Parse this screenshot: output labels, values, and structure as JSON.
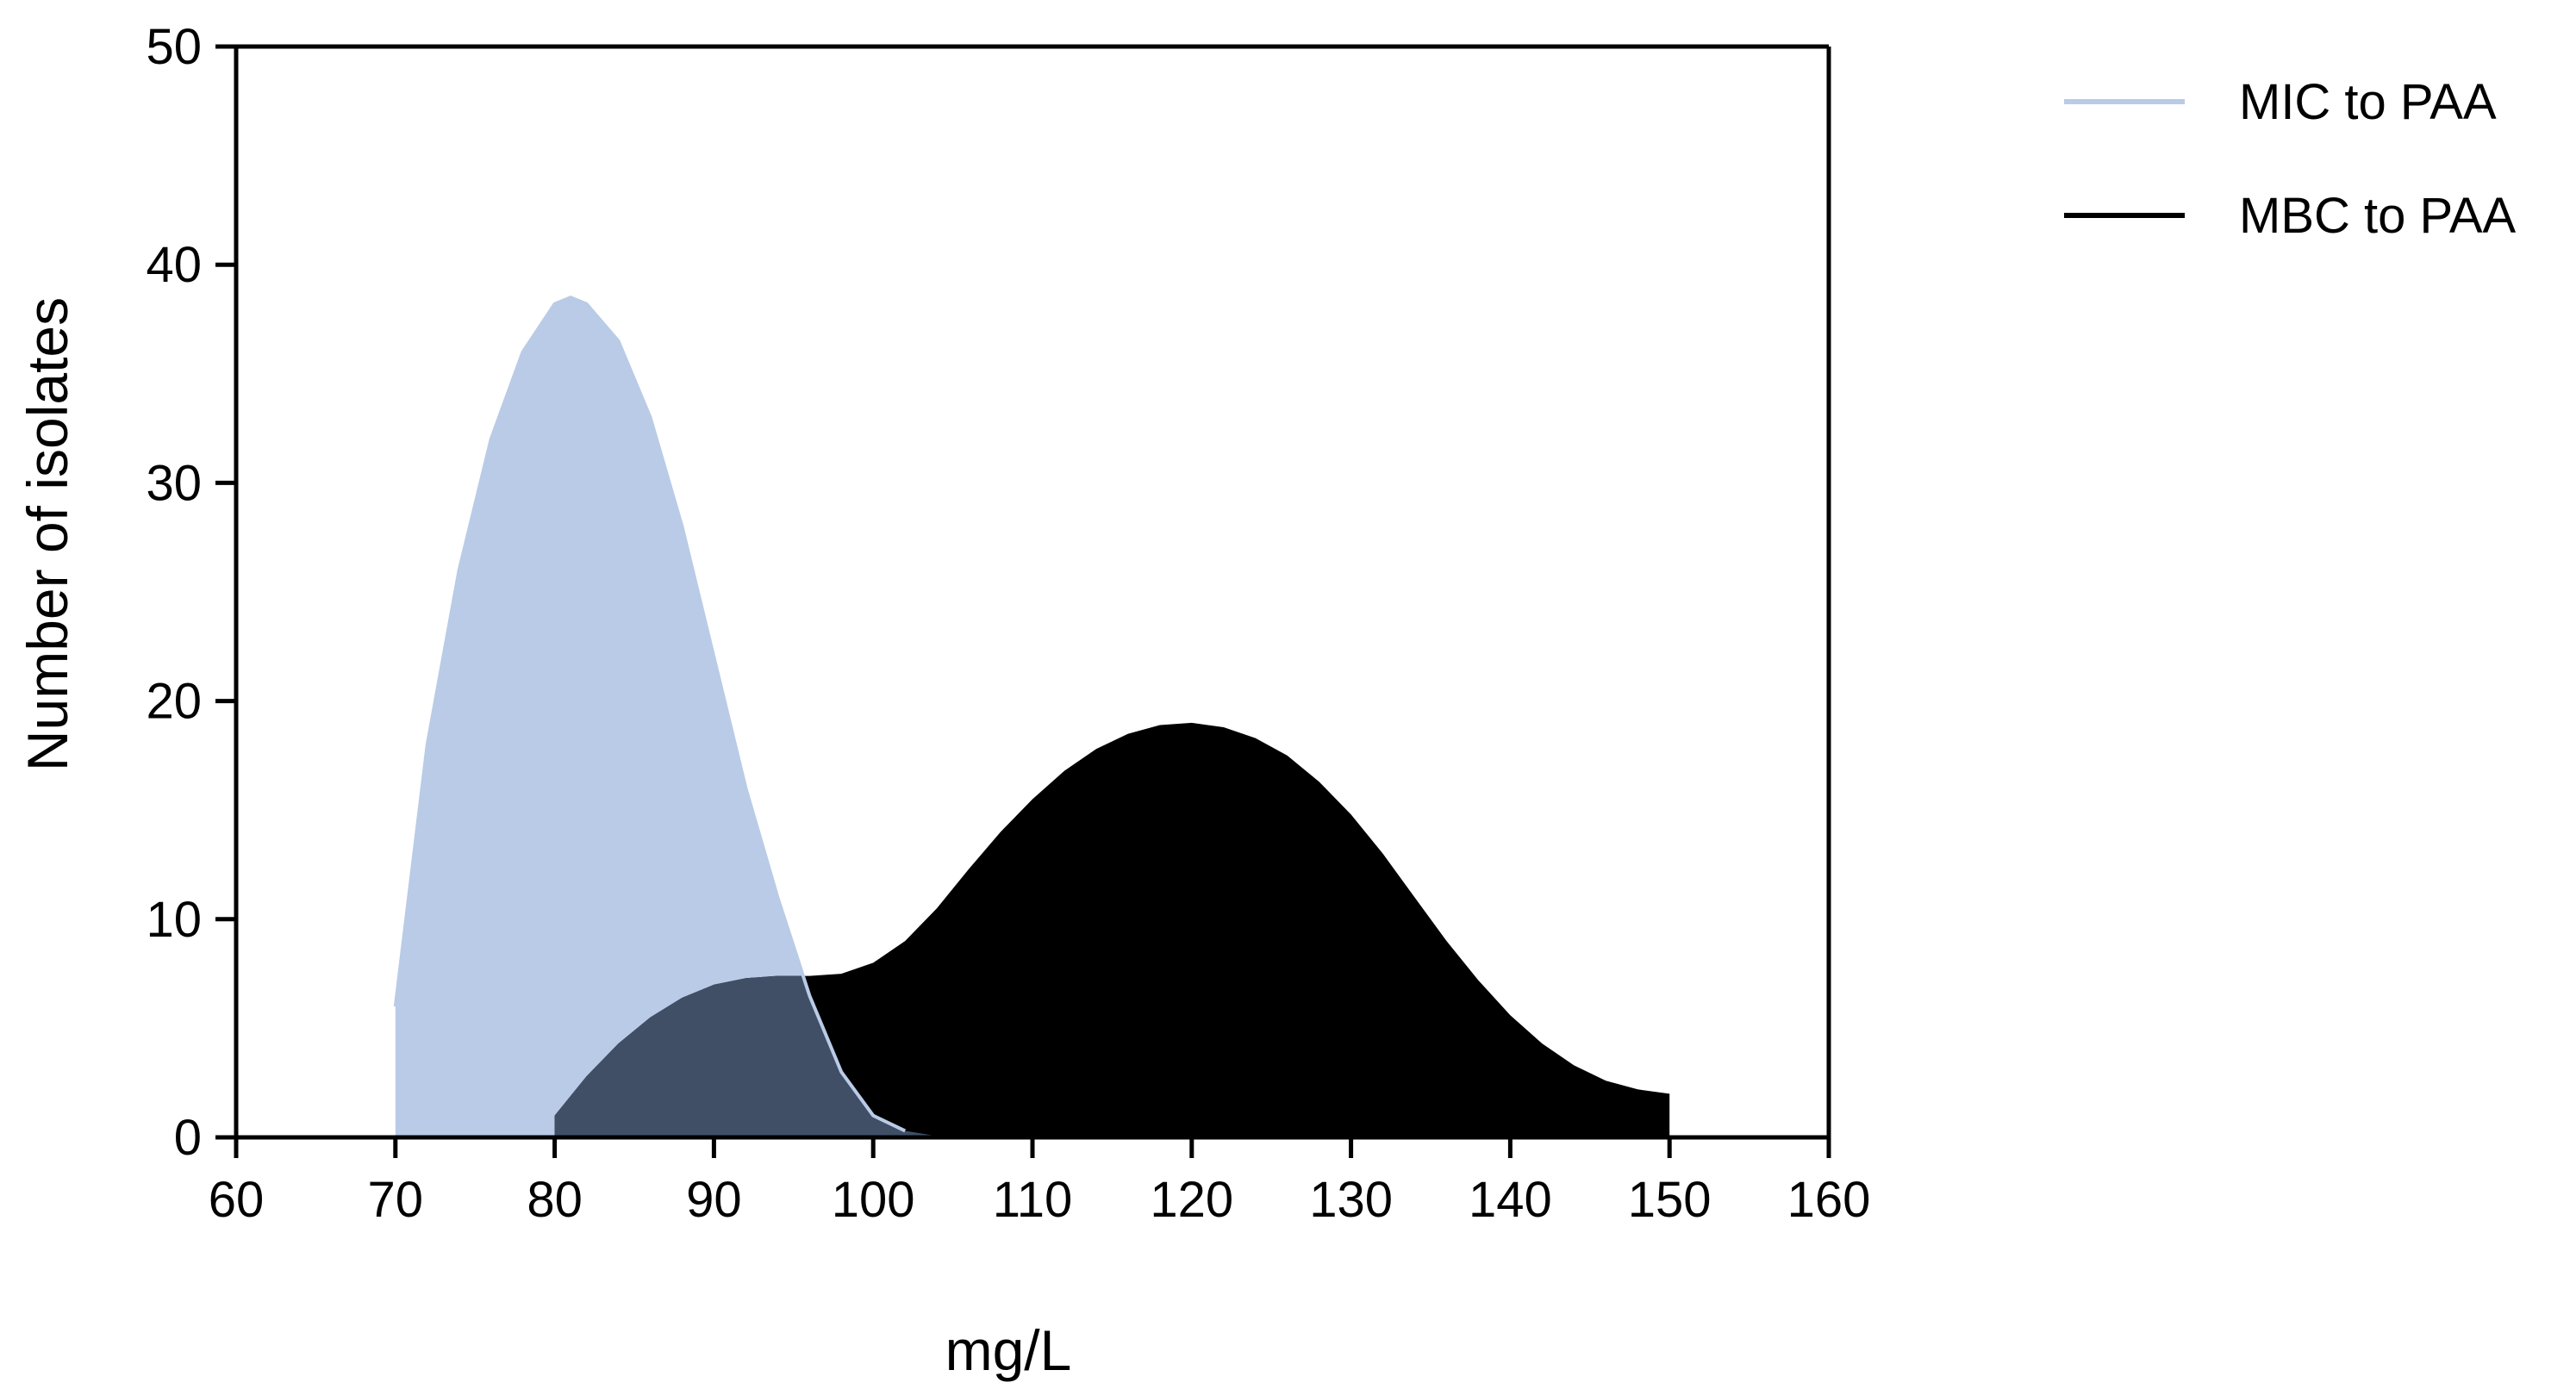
{
  "chart_data": {
    "type": "area",
    "title": "",
    "xlabel": "mg/L",
    "ylabel": "Number of isolates",
    "xlim": [
      60,
      160
    ],
    "ylim": [
      0,
      50
    ],
    "xticks": [
      60,
      70,
      80,
      90,
      100,
      110,
      120,
      130,
      140,
      150,
      160
    ],
    "yticks": [
      0,
      10,
      20,
      30,
      40,
      50
    ],
    "grid": false,
    "legend_position": "top-right",
    "series": [
      {
        "name": "MIC to PAA",
        "color": "#b9cbe6",
        "line_color": "#b9cbe6",
        "x": [
          70,
          70,
          71,
          72,
          74,
          76,
          78,
          80,
          81,
          82,
          84,
          86,
          88,
          90,
          92,
          94,
          96,
          98,
          100,
          102,
          104.5
        ],
        "y": [
          0,
          6,
          12,
          18,
          26,
          32,
          36,
          38.2,
          38.5,
          38.2,
          36.5,
          33,
          28,
          22,
          16,
          11,
          6.5,
          3,
          1,
          0.3,
          0
        ]
      },
      {
        "name": "MBC to PAA",
        "color": "#000000",
        "line_color": "#000000",
        "x": [
          80,
          80,
          82,
          84,
          86,
          88,
          90,
          92,
          94,
          96,
          98,
          100,
          102,
          104,
          106,
          108,
          110,
          112,
          114,
          116,
          118,
          120,
          122,
          124,
          126,
          128,
          130,
          132,
          134,
          136,
          138,
          140,
          142,
          144,
          146,
          148,
          150,
          150
        ],
        "y": [
          0,
          1,
          2.8,
          4.3,
          5.5,
          6.4,
          7.0,
          7.3,
          7.4,
          7.4,
          7.5,
          8.0,
          9.0,
          10.5,
          12.3,
          14.0,
          15.5,
          16.8,
          17.8,
          18.5,
          18.9,
          19.0,
          18.8,
          18.3,
          17.5,
          16.3,
          14.8,
          13.0,
          11.0,
          9.0,
          7.2,
          5.6,
          4.3,
          3.3,
          2.6,
          2.2,
          2.0,
          0
        ]
      }
    ],
    "overlap_color": "#404f66"
  }
}
